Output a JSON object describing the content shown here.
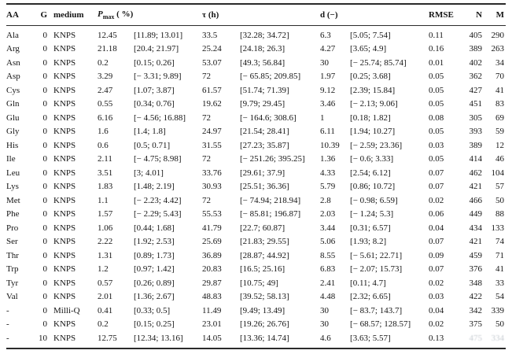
{
  "table": {
    "header": {
      "aa": "AA",
      "g": "G",
      "medium": "medium",
      "pmax_symbol": "P",
      "pmax_sub": "max",
      "pmax_unit": " ( %)",
      "tau": "τ (h)",
      "d": "d (−)",
      "rmse": "RMSE",
      "n": "N",
      "m": "M"
    },
    "rows": [
      [
        "Ala",
        "0",
        "KNPS",
        "12.45",
        "[11.89; 13.01]",
        "33.5",
        "[32.28; 34.72]",
        "6.3",
        "[5.05; 7.54]",
        "0.11",
        "405",
        "290"
      ],
      [
        "Arg",
        "0",
        "KNPS",
        "21.18",
        "[20.4; 21.97]",
        "25.24",
        "[24.18; 26.3]",
        "4.27",
        "[3.65; 4.9]",
        "0.16",
        "389",
        "263"
      ],
      [
        "Asn",
        "0",
        "KNPS",
        "0.2",
        "[0.15; 0.26]",
        "53.07",
        "[49.3; 56.84]",
        "30",
        "[− 25.74; 85.74]",
        "0.01",
        "402",
        "34"
      ],
      [
        "Asp",
        "0",
        "KNPS",
        "3.29",
        "[− 3.31; 9.89]",
        "72",
        "[− 65.85; 209.85]",
        "1.97",
        "[0.25; 3.68]",
        "0.05",
        "362",
        "70"
      ],
      [
        "Cys",
        "0",
        "KNPS",
        "2.47",
        "[1.07; 3.87]",
        "61.57",
        "[51.74; 71.39]",
        "9.12",
        "[2.39; 15.84]",
        "0.05",
        "427",
        "41"
      ],
      [
        "Gln",
        "0",
        "KNPS",
        "0.55",
        "[0.34; 0.76]",
        "19.62",
        "[9.79; 29.45]",
        "3.46",
        "[− 2.13; 9.06]",
        "0.05",
        "451",
        "83"
      ],
      [
        "Glu",
        "0",
        "KNPS",
        "6.16",
        "[− 4.56; 16.88]",
        "72",
        "[− 164.6; 308.6]",
        "1",
        "[0.18; 1.82]",
        "0.08",
        "305",
        "69"
      ],
      [
        "Gly",
        "0",
        "KNPS",
        "1.6",
        "[1.4; 1.8]",
        "24.97",
        "[21.54; 28.41]",
        "6.11",
        "[1.94; 10.27]",
        "0.05",
        "393",
        "59"
      ],
      [
        "His",
        "0",
        "KNPS",
        "0.6",
        "[0.5; 0.71]",
        "31.55",
        "[27.23; 35.87]",
        "10.39",
        "[− 2.59; 23.36]",
        "0.03",
        "389",
        "12"
      ],
      [
        "Ile",
        "0",
        "KNPS",
        "2.11",
        "[− 4.75; 8.98]",
        "72",
        "[− 251.26; 395.25]",
        "1.36",
        "[− 0.6; 3.33]",
        "0.05",
        "414",
        "46"
      ],
      [
        "Leu",
        "0",
        "KNPS",
        "3.51",
        "[3; 4.01]",
        "33.76",
        "[29.61; 37.9]",
        "4.33",
        "[2.54; 6.12]",
        "0.07",
        "462",
        "104"
      ],
      [
        "Lys",
        "0",
        "KNPS",
        "1.83",
        "[1.48; 2.19]",
        "30.93",
        "[25.51; 36.36]",
        "5.79",
        "[0.86; 10.72]",
        "0.07",
        "421",
        "57"
      ],
      [
        "Met",
        "0",
        "KNPS",
        "1.1",
        "[− 2.23; 4.42]",
        "72",
        "[− 74.94; 218.94]",
        "2.8",
        "[− 0.98; 6.59]",
        "0.02",
        "466",
        "50"
      ],
      [
        "Phe",
        "0",
        "KNPS",
        "1.57",
        "[− 2.29; 5.43]",
        "55.53",
        "[− 85.81; 196.87]",
        "2.03",
        "[− 1.24; 5.3]",
        "0.06",
        "449",
        "88"
      ],
      [
        "Pro",
        "0",
        "KNPS",
        "1.06",
        "[0.44; 1.68]",
        "41.79",
        "[22.7; 60.87]",
        "3.44",
        "[0.31; 6.57]",
        "0.04",
        "434",
        "133"
      ],
      [
        "Ser",
        "0",
        "KNPS",
        "2.22",
        "[1.92; 2.53]",
        "25.69",
        "[21.83; 29.55]",
        "5.06",
        "[1.93; 8.2]",
        "0.07",
        "421",
        "74"
      ],
      [
        "Thr",
        "0",
        "KNPS",
        "1.31",
        "[0.89; 1.73]",
        "36.89",
        "[28.87; 44.92]",
        "8.55",
        "[− 5.61; 22.71]",
        "0.09",
        "459",
        "71"
      ],
      [
        "Trp",
        "0",
        "KNPS",
        "1.2",
        "[0.97; 1.42]",
        "20.83",
        "[16.5; 25.16]",
        "6.83",
        "[− 2.07; 15.73]",
        "0.07",
        "376",
        "41"
      ],
      [
        "Tyr",
        "0",
        "KNPS",
        "0.57",
        "[0.26; 0.89]",
        "29.87",
        "[10.75; 49]",
        "2.41",
        "[0.11; 4.7]",
        "0.02",
        "348",
        "33"
      ],
      [
        "Val",
        "0",
        "KNPS",
        "2.01",
        "[1.36; 2.67]",
        "48.83",
        "[39.52; 58.13]",
        "4.48",
        "[2.32; 6.65]",
        "0.03",
        "422",
        "54"
      ],
      [
        "-",
        "0",
        "Milli-Q",
        "0.41",
        "[0.33; 0.5]",
        "11.49",
        "[9.49; 13.49]",
        "30",
        "[− 83.7; 143.7]",
        "0.04",
        "342",
        "339"
      ],
      [
        "-",
        "0",
        "KNPS",
        "0.2",
        "[0.15; 0.25]",
        "23.01",
        "[19.26; 26.76]",
        "30",
        "[− 68.57; 128.57]",
        "0.02",
        "375",
        "50"
      ],
      [
        "-",
        "10",
        "KNPS",
        "12.75",
        "[12.34; 13.16]",
        "14.05",
        "[13.36; 14.74]",
        "4.6",
        "[3.63; 5.57]",
        "0.13",
        "475",
        "334"
      ]
    ],
    "faded": {
      "row_index": 22,
      "cols": [
        10,
        11
      ]
    }
  }
}
